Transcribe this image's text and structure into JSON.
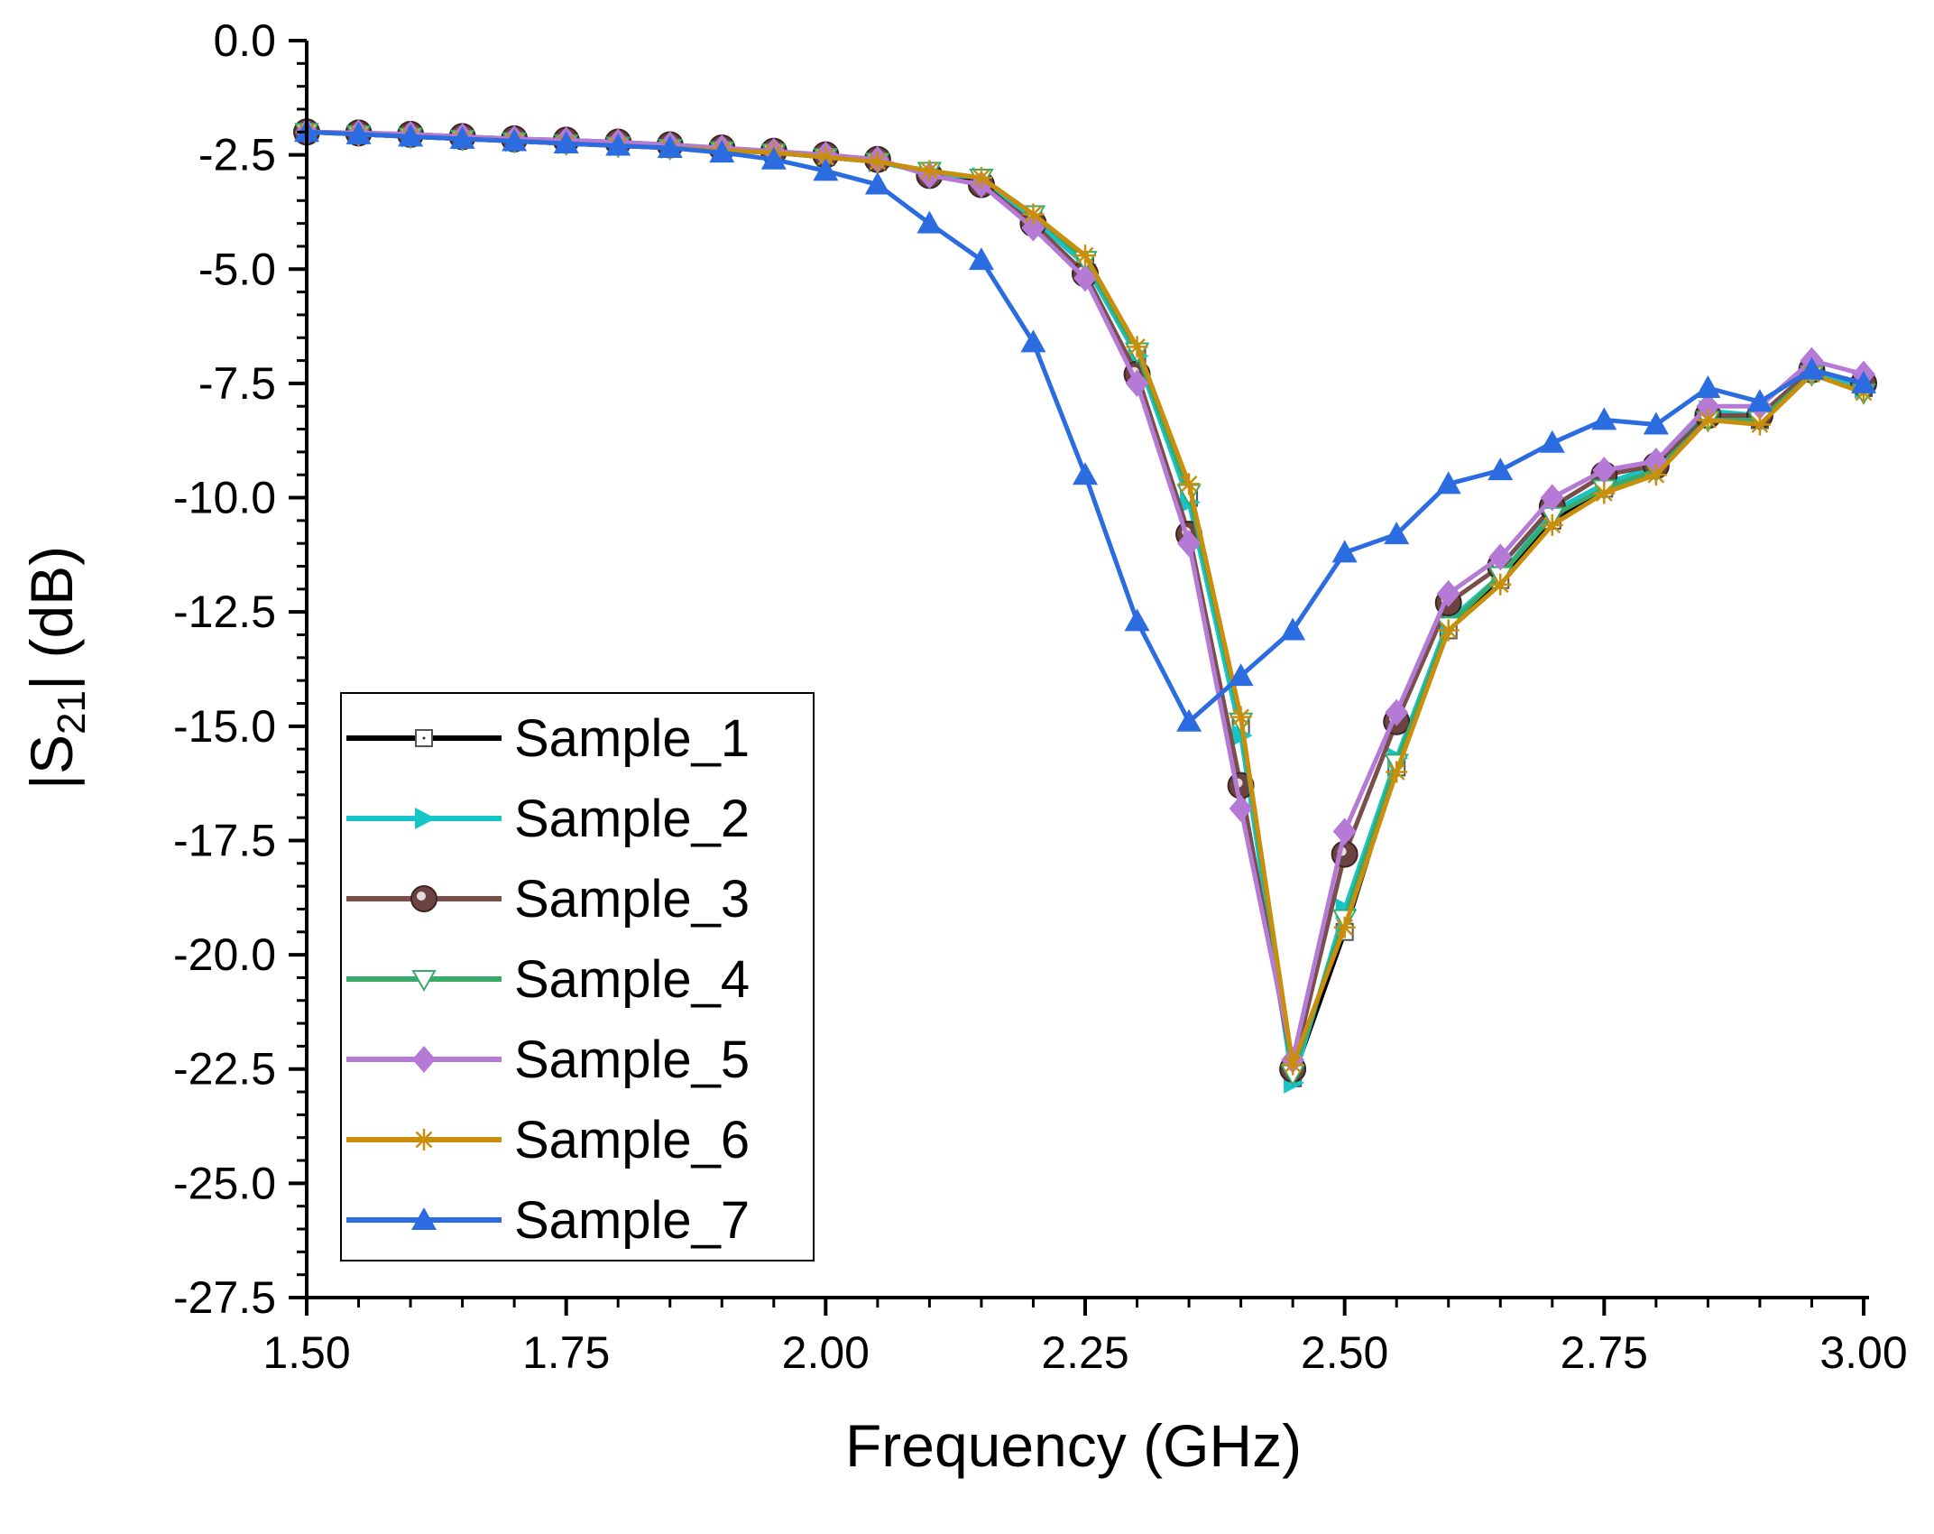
{
  "chart_data": {
    "type": "line",
    "title": "",
    "xlabel": "Frequency (GHz)",
    "ylabel": {
      "prefix": "|S",
      "subscript": "21",
      "suffix": "| (dB)"
    },
    "xlim": [
      1.5,
      3.0
    ],
    "ylim": [
      -27.5,
      0.0
    ],
    "x_ticks": [
      1.5,
      1.75,
      2.0,
      2.25,
      2.5,
      2.75,
      3.0
    ],
    "x_tick_labels": [
      "1.50",
      "1.75",
      "2.00",
      "2.25",
      "2.50",
      "2.75",
      "3.00"
    ],
    "y_ticks": [
      0,
      -2.5,
      -5,
      -7.5,
      -10,
      -12.5,
      -15,
      -17.5,
      -20,
      -22.5,
      -25,
      -27.5
    ],
    "y_tick_labels": [
      "0.0",
      "-2.5",
      "-5.0",
      "-7.5",
      "-10.0",
      "-12.5",
      "-15.0",
      "-17.5",
      "-20.0",
      "-22.5",
      "-25.0",
      "-27.5"
    ],
    "grid": false,
    "legend_position": "bottom-left",
    "x": [
      1.5,
      1.55,
      1.6,
      1.65,
      1.7,
      1.75,
      1.8,
      1.85,
      1.9,
      1.95,
      2.0,
      2.05,
      2.1,
      2.15,
      2.2,
      2.25,
      2.3,
      2.35,
      2.4,
      2.45,
      2.5,
      2.55,
      2.6,
      2.65,
      2.7,
      2.75,
      2.8,
      2.85,
      2.9,
      2.95,
      3.0
    ],
    "series": [
      {
        "name": "Sample_1",
        "color": "#000000",
        "marker": "open-square",
        "values": [
          -2.0,
          -2.05,
          -2.1,
          -2.15,
          -2.2,
          -2.25,
          -2.3,
          -2.35,
          -2.4,
          -2.45,
          -2.55,
          -2.65,
          -2.9,
          -3.1,
          -3.9,
          -4.9,
          -6.9,
          -10.0,
          -15.0,
          -22.7,
          -19.5,
          -15.9,
          -12.9,
          -11.8,
          -10.5,
          -9.8,
          -9.3,
          -8.2,
          -8.3,
          -7.2,
          -7.6
        ]
      },
      {
        "name": "Sample_2",
        "color": "#17c5c9",
        "marker": "triangle-right",
        "values": [
          -2.0,
          -2.05,
          -2.1,
          -2.15,
          -2.2,
          -2.25,
          -2.3,
          -2.35,
          -2.4,
          -2.45,
          -2.55,
          -2.65,
          -2.9,
          -3.0,
          -3.9,
          -4.9,
          -6.9,
          -10.1,
          -15.2,
          -22.8,
          -19.0,
          -15.7,
          -12.7,
          -11.7,
          -10.3,
          -9.7,
          -9.3,
          -8.1,
          -8.2,
          -7.2,
          -7.6
        ]
      },
      {
        "name": "Sample_3",
        "color": "#7a4e4a",
        "marker": "filled-circle",
        "values": [
          -2.0,
          -2.02,
          -2.05,
          -2.1,
          -2.15,
          -2.18,
          -2.22,
          -2.28,
          -2.35,
          -2.42,
          -2.5,
          -2.6,
          -2.95,
          -3.15,
          -4.0,
          -5.1,
          -7.3,
          -10.8,
          -16.3,
          -22.5,
          -17.8,
          -14.9,
          -12.3,
          -11.5,
          -10.2,
          -9.5,
          -9.3,
          -8.2,
          -8.2,
          -7.2,
          -7.5
        ]
      },
      {
        "name": "Sample_4",
        "color": "#3aaa6a",
        "marker": "open-triangle-down",
        "values": [
          -2.0,
          -2.05,
          -2.1,
          -2.15,
          -2.2,
          -2.25,
          -2.3,
          -2.35,
          -2.4,
          -2.45,
          -2.55,
          -2.65,
          -2.85,
          -3.0,
          -3.8,
          -4.8,
          -6.8,
          -9.9,
          -14.9,
          -22.6,
          -19.2,
          -15.8,
          -12.8,
          -11.7,
          -10.4,
          -9.8,
          -9.4,
          -8.3,
          -8.3,
          -7.3,
          -7.7
        ]
      },
      {
        "name": "Sample_5",
        "color": "#b57ad6",
        "marker": "filled-diamond",
        "values": [
          -2.0,
          -2.02,
          -2.05,
          -2.1,
          -2.15,
          -2.18,
          -2.22,
          -2.28,
          -2.35,
          -2.42,
          -2.5,
          -2.6,
          -2.95,
          -3.15,
          -4.1,
          -5.2,
          -7.5,
          -11.0,
          -16.8,
          -22.3,
          -17.3,
          -14.7,
          -12.1,
          -11.3,
          -10.0,
          -9.4,
          -9.2,
          -8.0,
          -8.0,
          -7.0,
          -7.3
        ]
      },
      {
        "name": "Sample_6",
        "color": "#c98f0c",
        "marker": "asterisk",
        "values": [
          -2.0,
          -2.05,
          -2.1,
          -2.15,
          -2.2,
          -2.25,
          -2.3,
          -2.35,
          -2.4,
          -2.45,
          -2.55,
          -2.65,
          -2.85,
          -3.0,
          -3.8,
          -4.7,
          -6.7,
          -9.7,
          -14.8,
          -22.4,
          -19.4,
          -16.0,
          -12.9,
          -11.9,
          -10.6,
          -9.9,
          -9.5,
          -8.3,
          -8.4,
          -7.3,
          -7.7
        ]
      },
      {
        "name": "Sample_7",
        "color": "#2b6de0",
        "marker": "filled-triangle-up",
        "values": [
          -2.0,
          -2.05,
          -2.1,
          -2.15,
          -2.2,
          -2.25,
          -2.3,
          -2.35,
          -2.45,
          -2.6,
          -2.85,
          -3.15,
          -4.0,
          -4.8,
          -6.6,
          -9.5,
          -12.7,
          -14.9,
          -13.9,
          -12.9,
          -11.2,
          -10.8,
          -9.7,
          -9.4,
          -8.8,
          -8.3,
          -8.4,
          -7.6,
          -7.9,
          -7.2,
          -7.5
        ]
      }
    ]
  }
}
